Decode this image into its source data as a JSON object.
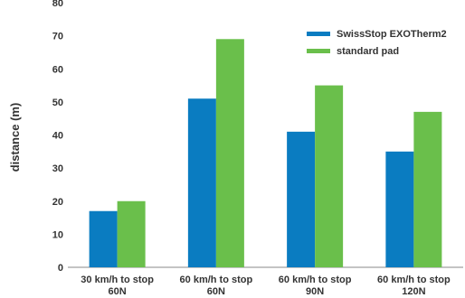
{
  "chart_data": {
    "type": "bar",
    "title": "",
    "xlabel": "",
    "ylabel": "distance (m)",
    "ylim": [
      0,
      80
    ],
    "yticks": [
      0,
      10,
      20,
      30,
      40,
      50,
      60,
      70,
      80
    ],
    "grid": false,
    "legend_position": "top-right",
    "categories": [
      [
        "30 km/h to stop",
        "60N"
      ],
      [
        "60 km/h to stop",
        "60N"
      ],
      [
        "60 km/h to stop",
        "90N"
      ],
      [
        "60 km/h to stop",
        "120N"
      ]
    ],
    "series": [
      {
        "name": "SwissStop EXOTherm2",
        "color": "#0a7cc1",
        "values": [
          17,
          51,
          41,
          35
        ]
      },
      {
        "name": "standard pad",
        "color": "#6abf4b",
        "values": [
          20,
          69,
          55,
          47
        ]
      }
    ]
  }
}
